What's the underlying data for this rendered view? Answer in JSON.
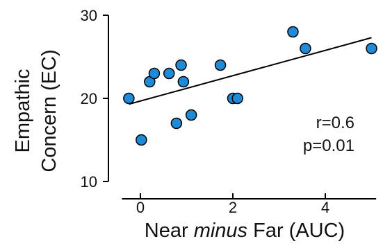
{
  "chart_data": {
    "type": "scatter",
    "title": "",
    "xlabel_prefix": "Near ",
    "xlabel_italic": "minus",
    "xlabel_suffix": " Far (AUC)",
    "ylabel_line1": "Empathic",
    "ylabel_line2": "Concern (EC)",
    "xlim": [
      -0.4,
      5.1
    ],
    "ylim": [
      10,
      30
    ],
    "x_ticks": [
      0,
      2,
      4
    ],
    "x_tick_labels": [
      "0",
      "2",
      "4"
    ],
    "y_ticks": [
      10,
      20,
      30
    ],
    "y_tick_labels": [
      "10",
      "20",
      "30"
    ],
    "points": [
      {
        "x": -0.25,
        "y": 20
      },
      {
        "x": 0.02,
        "y": 15
      },
      {
        "x": 0.2,
        "y": 22
      },
      {
        "x": 0.3,
        "y": 23
      },
      {
        "x": 0.62,
        "y": 23
      },
      {
        "x": 0.78,
        "y": 17
      },
      {
        "x": 0.88,
        "y": 24
      },
      {
        "x": 0.93,
        "y": 22
      },
      {
        "x": 1.1,
        "y": 18
      },
      {
        "x": 1.73,
        "y": 24
      },
      {
        "x": 2.0,
        "y": 20
      },
      {
        "x": 2.1,
        "y": 20
      },
      {
        "x": 3.3,
        "y": 28
      },
      {
        "x": 3.57,
        "y": 26
      },
      {
        "x": 5.0,
        "y": 26
      }
    ],
    "fit_line": {
      "x": [
        -0.25,
        5.0
      ],
      "y": [
        19.3,
        27.3
      ]
    },
    "annotation_line1": "r=0.6",
    "annotation_line2": "p=0.01",
    "point_color": "#1f8ad6",
    "grid": false
  }
}
